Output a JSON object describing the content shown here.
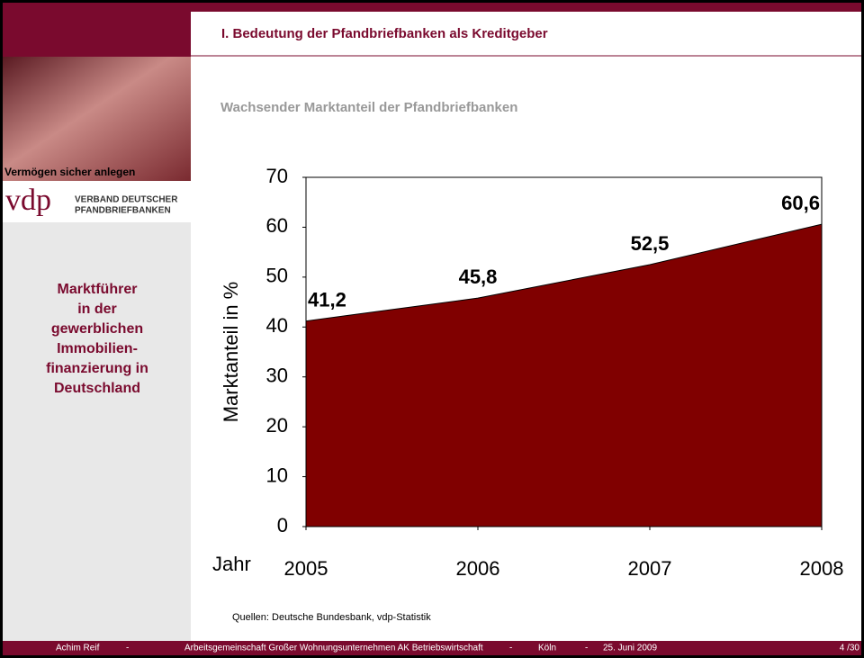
{
  "header": {
    "title": "I. Bedeutung der Pfandbriefbanken als Kreditgeber"
  },
  "sidebar": {
    "photo_caption": "Vermögen sicher anlegen",
    "logo_mark": "vdp",
    "logo_lines": [
      "VERBAND DEUTSCHER",
      "PFANDBRIEFBANKEN"
    ],
    "claim_lines": [
      "Marktführer",
      "in der",
      "gewerblichen",
      "Immobilien-",
      "finanzierung in",
      "Deutschland"
    ]
  },
  "chart_data": {
    "type": "area",
    "title": "Wachsender Marktanteil der Pfandbriefbanken",
    "y_label": "Marktanteil in %",
    "x_label": "Jahr",
    "x": [
      2005,
      2006,
      2007,
      2008
    ],
    "values": [
      41.2,
      45.8,
      52.5,
      60.6
    ],
    "value_labels": [
      "41,2",
      "45,8",
      "52,5",
      "60,6"
    ],
    "color": "#800000",
    "xlim": [
      2005,
      2008
    ],
    "xticks": [
      2005,
      2006,
      2007,
      2008
    ],
    "ylim": [
      0,
      70
    ],
    "yticks": [
      0,
      10,
      20,
      30,
      40,
      50,
      60,
      70
    ],
    "grid": false
  },
  "source": "Quellen: Deutsche Bundesbank, vdp-Statistik",
  "footer": {
    "items": [
      "Achim Reif",
      "-",
      "Arbeitsgemeinschaft Großer Wohnungsunternehmen  AK Betriebswirtschaft",
      "-",
      "Köln",
      "-",
      "25. Juni 2009"
    ],
    "page": "4 /30"
  }
}
